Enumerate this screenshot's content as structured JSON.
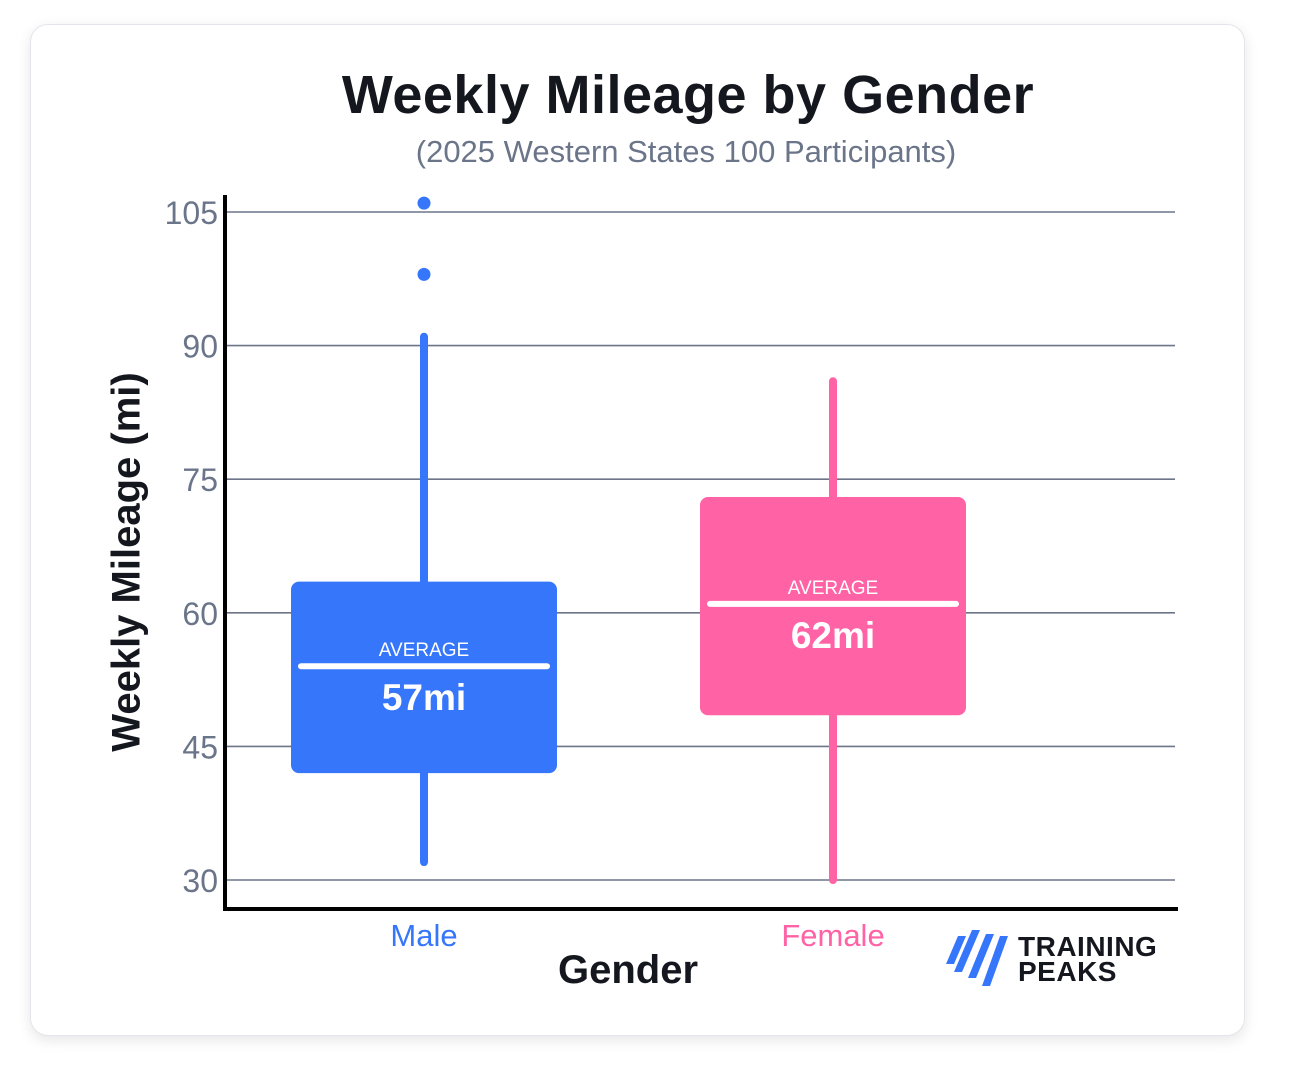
{
  "title": "Weekly Mileage by Gender",
  "subtitle": "(2025 Western States 100 Participants)",
  "logo": {
    "line1": "TRAINING",
    "line2": "PEAKS"
  },
  "chart_data": {
    "type": "box",
    "title": "Weekly Mileage by Gender",
    "subtitle": "(2025 Western States 100 Participants)",
    "xlabel": "Gender",
    "ylabel": "Weekly Mileage (mi)",
    "ylim": [
      30,
      105
    ],
    "yticks": [
      30,
      45,
      60,
      75,
      90,
      105
    ],
    "grid": true,
    "categories": [
      "Male",
      "Female"
    ],
    "series": [
      {
        "name": "Male",
        "color": "#3676fb",
        "whisker_low": 32,
        "q1": 42,
        "mean": 54,
        "q3": 63.5,
        "whisker_high": 91,
        "outliers": [
          106,
          98
        ],
        "average_label": "AVERAGE",
        "average_value": "57mi"
      },
      {
        "name": "Female",
        "color": "#ff62a5",
        "whisker_low": 30,
        "q1": 48.5,
        "mean": 61,
        "q3": 73,
        "whisker_high": 86,
        "outliers": [],
        "average_label": "AVERAGE",
        "average_value": "62mi"
      }
    ]
  }
}
